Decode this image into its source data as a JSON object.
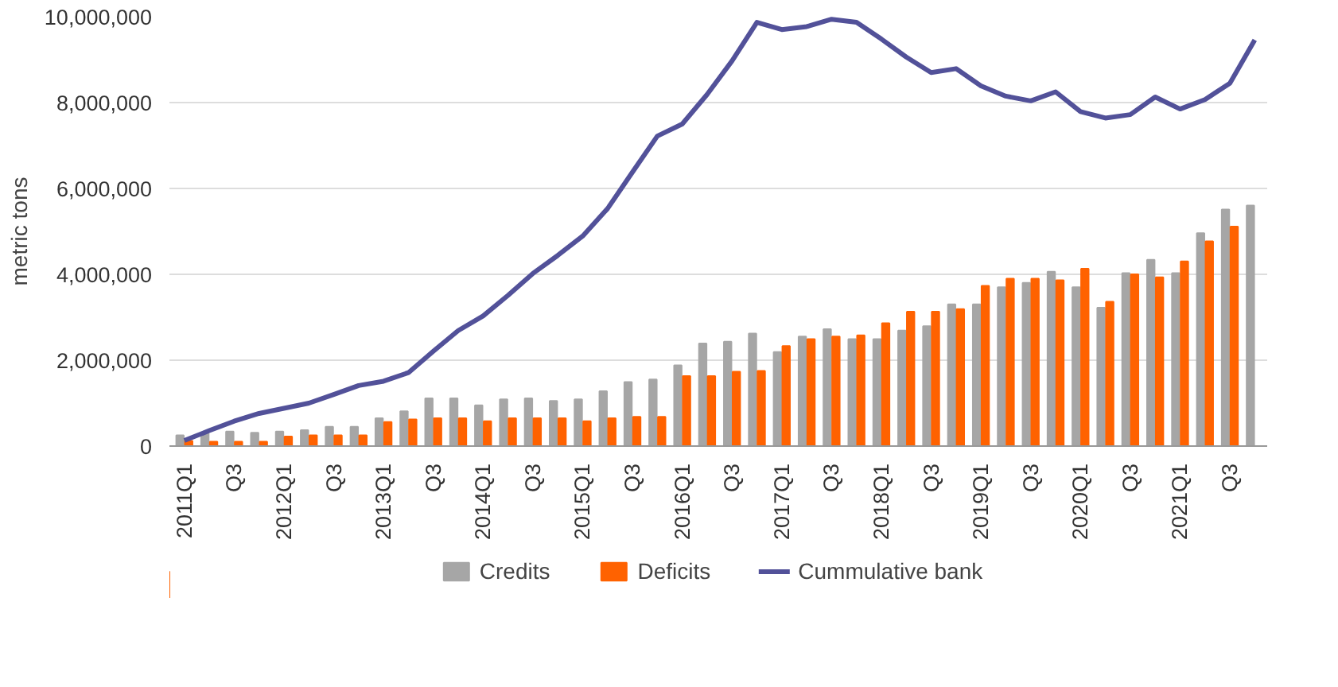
{
  "chart_data": {
    "type": "bar",
    "ylabel": "metric tons",
    "categories": [
      "2011Q1",
      null,
      "Q3",
      null,
      "2012Q1",
      null,
      "Q3",
      null,
      "2013Q1",
      null,
      "Q3",
      null,
      "2014Q1",
      null,
      "Q3",
      null,
      "2015Q1",
      null,
      "Q3",
      null,
      "2016Q1",
      null,
      "Q3",
      null,
      "2017Q1",
      null,
      "Q3",
      null,
      "2018Q1",
      null,
      "Q3",
      null,
      "2019Q1",
      null,
      "Q3",
      null,
      "2020Q1",
      null,
      "Q3",
      null,
      "2021Q1",
      null,
      "Q3",
      null
    ],
    "series": [
      {
        "name": "Credits",
        "color": "#a6a6a6",
        "values": [
          250000,
          300000,
          340000,
          310000,
          340000,
          370000,
          450000,
          450000,
          650000,
          810000,
          1110000,
          1110000,
          950000,
          1090000,
          1110000,
          1050000,
          1090000,
          1280000,
          1490000,
          1550000,
          1880000,
          2390000,
          2430000,
          2620000,
          2190000,
          2550000,
          2720000,
          2490000,
          2490000,
          2690000,
          2790000,
          3300000,
          3300000,
          3700000,
          3800000,
          4060000,
          3700000,
          3220000,
          4030000,
          4340000,
          4030000,
          4960000,
          5510000,
          5600000
        ]
      },
      {
        "name": "Deficits",
        "color": "#ff6200",
        "values": [
          120000,
          100000,
          100000,
          100000,
          220000,
          250000,
          250000,
          250000,
          560000,
          620000,
          650000,
          650000,
          580000,
          650000,
          650000,
          650000,
          580000,
          650000,
          680000,
          680000,
          1630000,
          1630000,
          1730000,
          1750000,
          2330000,
          2490000,
          2550000,
          2580000,
          2860000,
          3130000,
          3130000,
          3190000,
          3730000,
          3900000,
          3900000,
          3860000,
          4130000,
          3360000,
          4000000,
          3930000,
          4300000,
          4770000,
          5110000,
          null
        ]
      },
      {
        "name": "Cummulative bank",
        "type": "line",
        "color": "#525199",
        "values": [
          130000,
          360000,
          580000,
          760000,
          880000,
          1000000,
          1200000,
          1410000,
          1510000,
          1710000,
          2210000,
          2690000,
          3030000,
          3510000,
          4020000,
          4440000,
          4890000,
          5530000,
          6380000,
          7220000,
          7500000,
          8190000,
          8970000,
          9870000,
          9700000,
          9770000,
          9940000,
          9870000,
          9480000,
          9060000,
          8700000,
          8790000,
          8390000,
          8150000,
          8040000,
          8250000,
          7790000,
          7640000,
          7720000,
          8130000,
          7850000,
          8070000,
          8450000,
          9460000
        ]
      }
    ],
    "ylim": [
      0,
      10000000
    ],
    "yticks": [
      {
        "value": 0,
        "label": "0"
      },
      {
        "value": 2000000,
        "label": "2,000,000"
      },
      {
        "value": 4000000,
        "label": "4,000,000"
      },
      {
        "value": 6000000,
        "label": "6,000,000"
      },
      {
        "value": 8000000,
        "label": "8,000,000"
      },
      {
        "value": 10000000,
        "label": "10,000,000"
      }
    ],
    "grid": "y",
    "legend": "bottom"
  }
}
